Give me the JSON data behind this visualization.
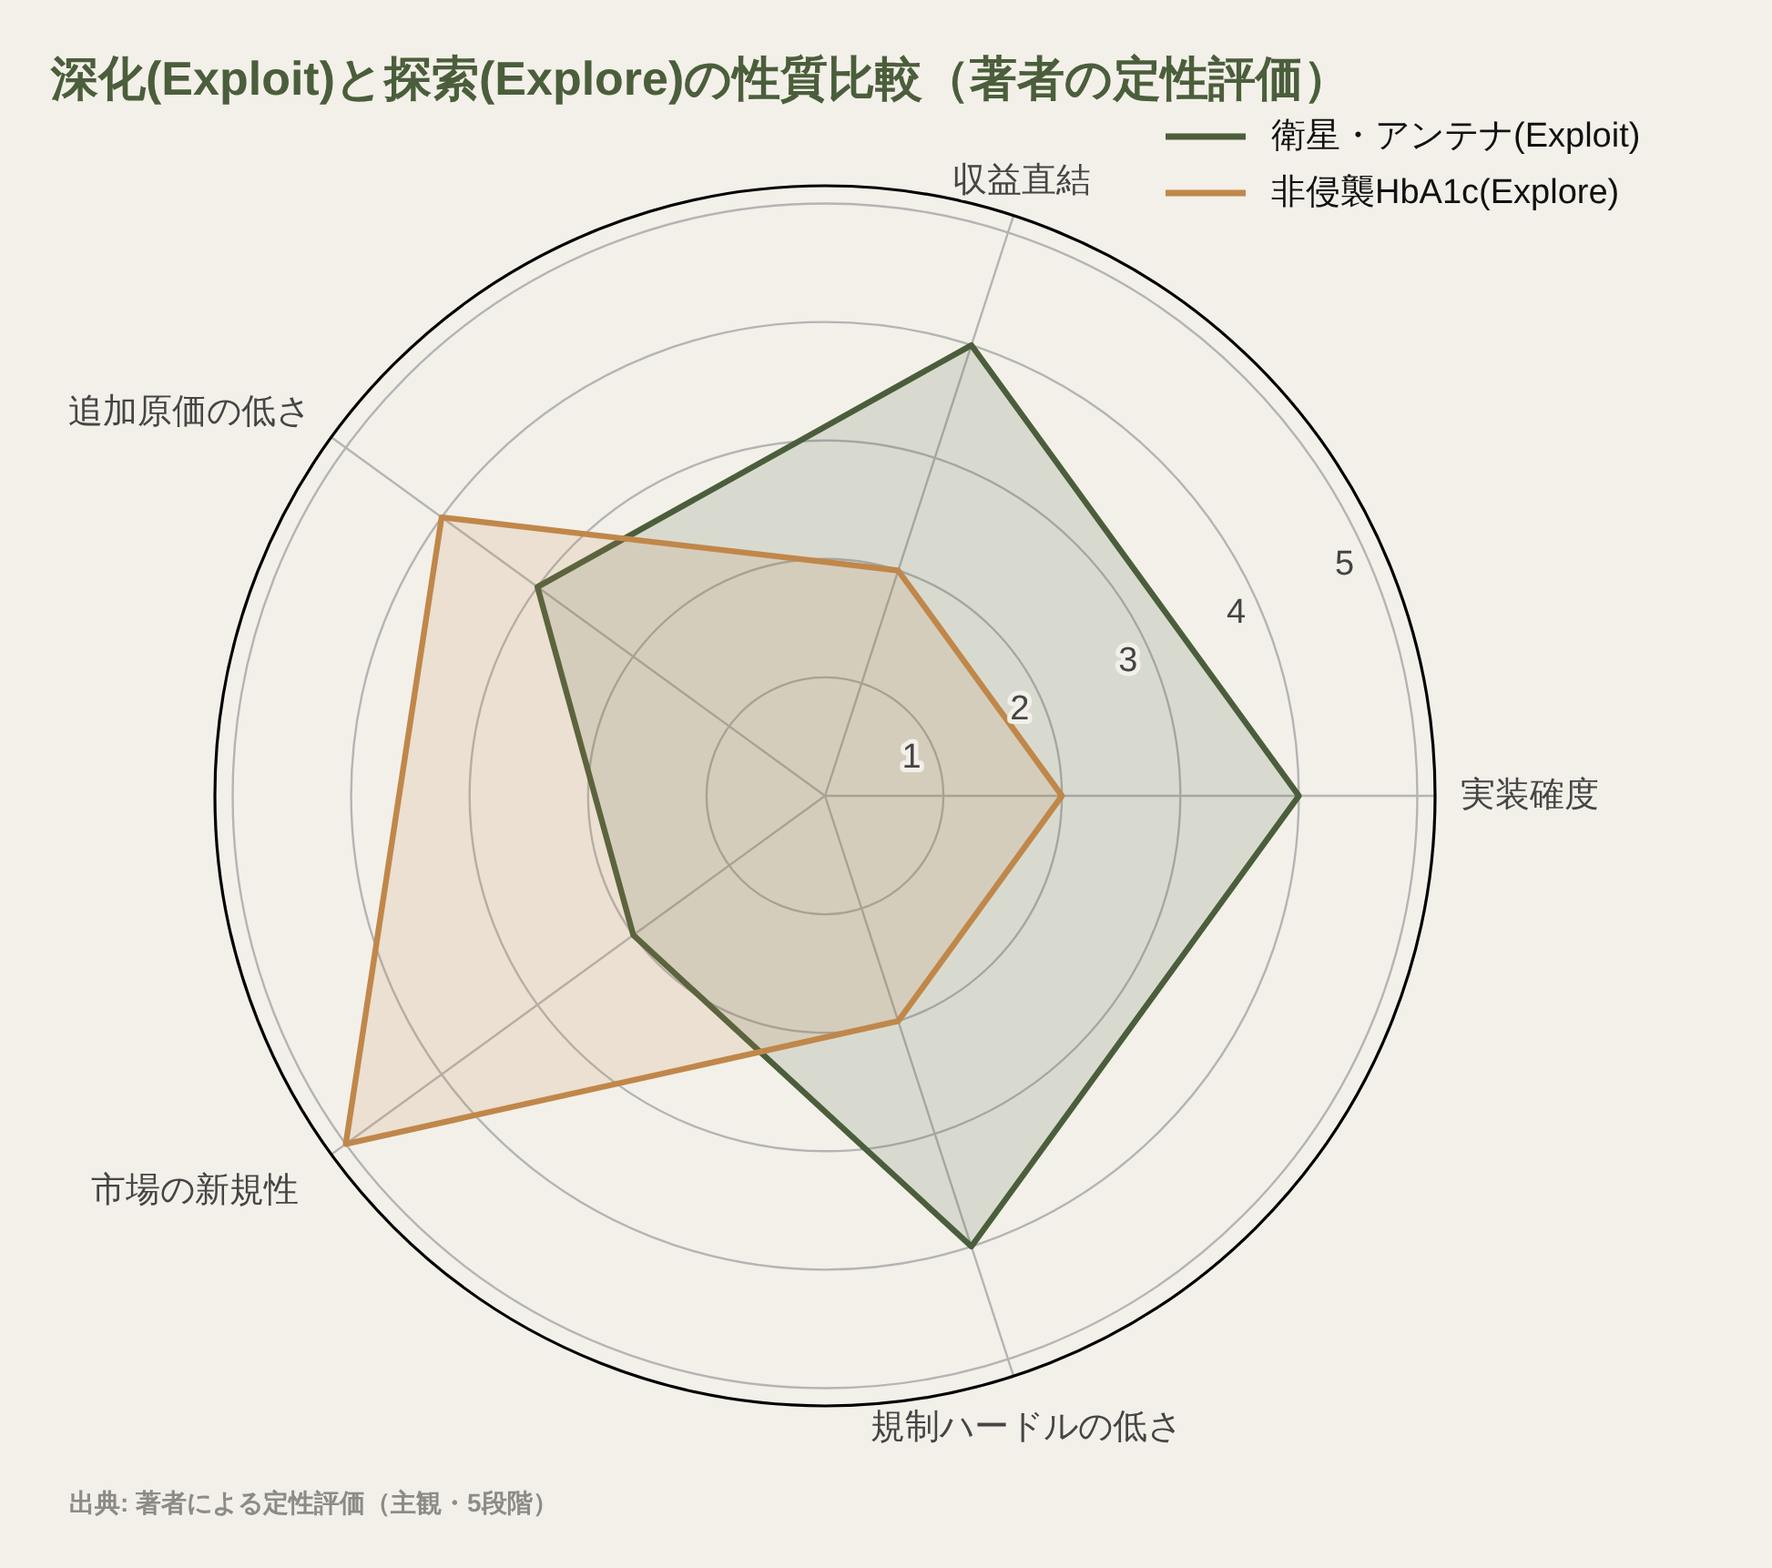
{
  "chart_data": {
    "type": "radar",
    "title": "深化(Exploit)と探索(Explore)の性質比較（著者の定性評価）",
    "categories": [
      "収益直結",
      "実装確度",
      "規制ハードルの低さ",
      "市場の新規性",
      "追加原価の低さ"
    ],
    "series": [
      {
        "name": "衛星・アンテナ(Exploit)",
        "color": "#4b5e3b",
        "values": [
          4,
          4,
          4,
          2,
          3
        ]
      },
      {
        "name": "非侵襲HbA1c(Explore)",
        "color": "#c0874a",
        "values": [
          2,
          2,
          2,
          5,
          4
        ]
      }
    ],
    "ylim": [
      0,
      5.15
    ],
    "yticks": [
      1,
      2,
      3,
      4,
      5
    ],
    "grid": true,
    "legend": "top right",
    "annotations": [
      "出典: 著者による定性評価（主観・5段階）"
    ]
  }
}
